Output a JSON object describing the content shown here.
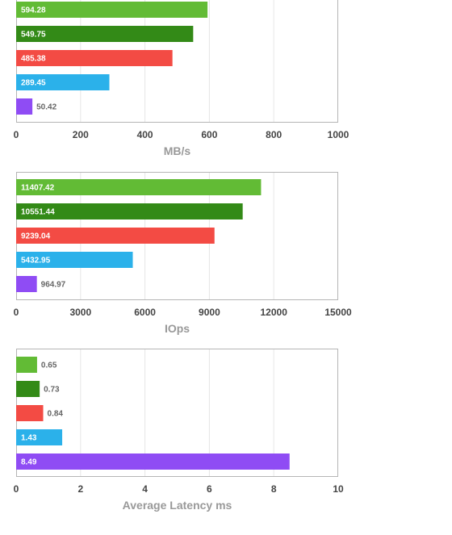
{
  "colors": [
    "#62bb35",
    "#338a17",
    "#f34b44",
    "#2bb1ea",
    "#8f4cf4"
  ],
  "chart_data": [
    {
      "type": "bar",
      "orientation": "horizontal",
      "xlabel": "MB/s",
      "xlim": [
        0,
        1000
      ],
      "ticks": [
        "0",
        "200",
        "400",
        "600",
        "800",
        "1000"
      ],
      "values": [
        594.28,
        549.75,
        485.38,
        289.45,
        50.42
      ],
      "value_labels": [
        "594.28",
        "549.75",
        "485.38",
        "289.45",
        "50.42"
      ],
      "grid": true
    },
    {
      "type": "bar",
      "orientation": "horizontal",
      "xlabel": "IOps",
      "xlim": [
        0,
        15000
      ],
      "ticks": [
        "0",
        "3000",
        "6000",
        "9000",
        "12000",
        "15000"
      ],
      "values": [
        11407.42,
        10551.44,
        9239.04,
        5432.95,
        964.97
      ],
      "value_labels": [
        "11407.42",
        "10551.44",
        "9239.04",
        "5432.95",
        "964.97"
      ],
      "grid": true
    },
    {
      "type": "bar",
      "orientation": "horizontal",
      "xlabel": "Average Latency ms",
      "xlim": [
        0,
        10
      ],
      "ticks": [
        "0",
        "2",
        "4",
        "6",
        "8",
        "10"
      ],
      "values": [
        0.65,
        0.73,
        0.84,
        1.43,
        8.49
      ],
      "value_labels": [
        "0.65",
        "0.73",
        "0.84",
        "1.43",
        "8.49"
      ],
      "grid": true
    }
  ]
}
